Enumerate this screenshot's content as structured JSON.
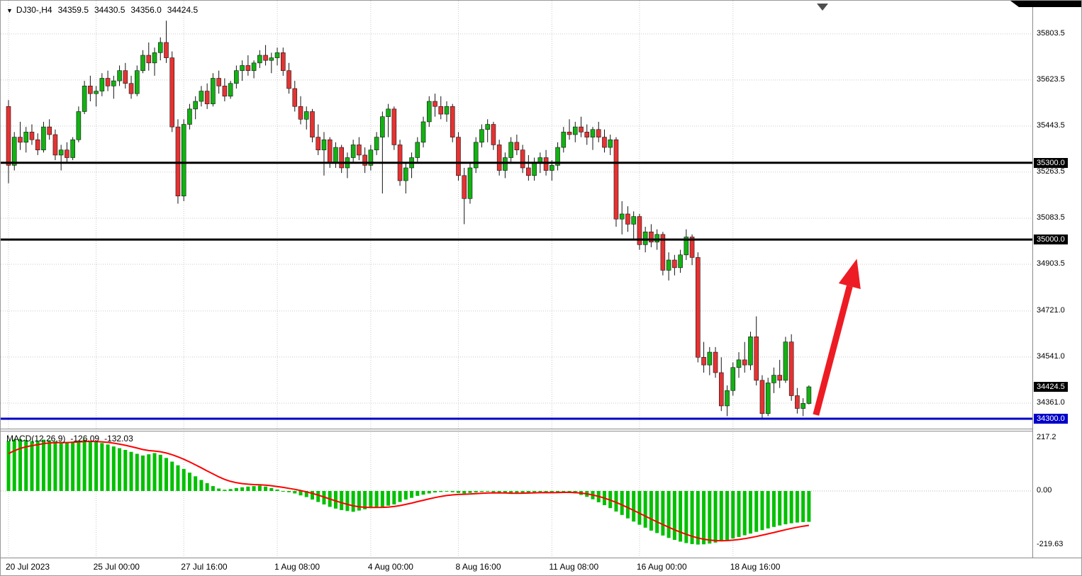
{
  "window": {
    "bg": "#ffffff",
    "border_color": "#9a9a9a"
  },
  "header": {
    "dropdown_icon": "▼",
    "symbol_period": "DJ30-,H4",
    "open": "34359.5",
    "high": "34430.5",
    "low": "34356.0",
    "close": "34424.5"
  },
  "macd_header": {
    "label": "MACD(12,26,9)",
    "value_main": "-126.09",
    "value_signal": "-132.03"
  },
  "y_axis": {
    "ticks": [
      {
        "label": "35803.5",
        "price": 35803.5
      },
      {
        "label": "35623.5",
        "price": 35623.5
      },
      {
        "label": "35443.5",
        "price": 35443.5
      },
      {
        "label": "35263.5",
        "price": 35263.5
      },
      {
        "label": "35083.5",
        "price": 35083.5
      },
      {
        "label": "34903.5",
        "price": 34903.5
      },
      {
        "label": "34721.0",
        "price": 34721.0
      },
      {
        "label": "34541.0",
        "price": 34541.0
      },
      {
        "label": "34361.0",
        "price": 34361.0
      }
    ],
    "special": [
      {
        "label": "35300.0",
        "price": 35300.0,
        "bg": "#000000"
      },
      {
        "label": "35000.0",
        "price": 35000.0,
        "bg": "#000000"
      },
      {
        "label": "34424.5",
        "price": 34424.5,
        "bg": "#000000"
      },
      {
        "label": "34300.0",
        "price": 34300.0,
        "bg": "#0000c8"
      }
    ]
  },
  "macd_axis": {
    "ticks": [
      {
        "label": "217.2",
        "value": 217.2
      },
      {
        "label": "0.00",
        "value": 0
      },
      {
        "label": "-219.63",
        "value": -219.63
      }
    ]
  },
  "x_axis": {
    "ticks": [
      {
        "label": "20 Jul 2023",
        "index": 0
      },
      {
        "label": "25 Jul 00:00",
        "index": 15
      },
      {
        "label": "27 Jul 16:00",
        "index": 30
      },
      {
        "label": "1 Aug 08:00",
        "index": 46
      },
      {
        "label": "4 Aug 00:00",
        "index": 62
      },
      {
        "label": "8 Aug 16:00",
        "index": 77
      },
      {
        "label": "11 Aug 08:00",
        "index": 93
      },
      {
        "label": "16 Aug 00:00",
        "index": 108
      },
      {
        "label": "18 Aug 16:00",
        "index": 124
      }
    ]
  },
  "chart_data": {
    "type": "candlestick",
    "symbol": "DJ30-",
    "timeframe": "H4",
    "title": "DJ30-,H4 34359.5 34430.5 34356.0 34424.5",
    "indicator": "MACD(12,26,9)",
    "indicator_values": [
      -126.09,
      -132.03
    ],
    "y_range": [
      34300,
      35933
    ],
    "macd_range": [
      -219.63,
      217.2
    ],
    "levels": [
      {
        "price": 35300.0,
        "color": "#000000",
        "width": 3,
        "label": "35300.0"
      },
      {
        "price": 35000.0,
        "color": "#000000",
        "width": 3,
        "label": "35000.0"
      },
      {
        "price": 34300.0,
        "color": "#0000c8",
        "width": 3,
        "label": "34300.0"
      }
    ],
    "arrow": {
      "from_index": 138.2,
      "from_price": 34315,
      "to_index": 145.2,
      "to_price": 34925
    },
    "colors": {
      "bull": "#12b212",
      "bear": "#e63232",
      "wick": "#141414",
      "grid": "#c9c9c9",
      "macd_hist": "#00c000",
      "macd_signal": "#ff0000",
      "arrow": "#ed1c24",
      "level_badge": "#000000",
      "blue_badge": "#0000c8"
    },
    "ohlc": [
      [
        35520,
        35545,
        35220,
        35290
      ],
      [
        35290,
        35420,
        35270,
        35400
      ],
      [
        35400,
        35460,
        35350,
        35380
      ],
      [
        35380,
        35440,
        35340,
        35420
      ],
      [
        35420,
        35450,
        35370,
        35390
      ],
      [
        35390,
        35415,
        35330,
        35350
      ],
      [
        35350,
        35460,
        35340,
        35440
      ],
      [
        35440,
        35470,
        35390,
        35410
      ],
      [
        35410,
        35430,
        35310,
        35330
      ],
      [
        35330,
        35370,
        35270,
        35350
      ],
      [
        35350,
        35380,
        35300,
        35320
      ],
      [
        35320,
        35400,
        35310,
        35390
      ],
      [
        35390,
        35520,
        35380,
        35500
      ],
      [
        35500,
        35620,
        35490,
        35600
      ],
      [
        35600,
        35640,
        35540,
        35570
      ],
      [
        35570,
        35600,
        35520,
        35580
      ],
      [
        35580,
        35650,
        35560,
        35630
      ],
      [
        35630,
        35660,
        35580,
        35600
      ],
      [
        35600,
        35640,
        35550,
        35620
      ],
      [
        35620,
        35680,
        35600,
        35660
      ],
      [
        35660,
        35690,
        35590,
        35610
      ],
      [
        35610,
        35640,
        35550,
        35570
      ],
      [
        35570,
        35680,
        35560,
        35660
      ],
      [
        35660,
        35740,
        35650,
        35720
      ],
      [
        35720,
        35770,
        35660,
        35690
      ],
      [
        35690,
        35750,
        35640,
        35730
      ],
      [
        35730,
        35790,
        35700,
        35770
      ],
      [
        35770,
        35855,
        35690,
        35710
      ],
      [
        35710,
        35735,
        35420,
        35440
      ],
      [
        35440,
        35470,
        35140,
        35170
      ],
      [
        35170,
        35470,
        35150,
        35450
      ],
      [
        35450,
        35530,
        35430,
        35510
      ],
      [
        35510,
        35560,
        35470,
        35540
      ],
      [
        35540,
        35600,
        35520,
        35580
      ],
      [
        35580,
        35610,
        35510,
        35530
      ],
      [
        35530,
        35650,
        35520,
        35630
      ],
      [
        35630,
        35660,
        35570,
        35600
      ],
      [
        35600,
        35630,
        35540,
        35560
      ],
      [
        35560,
        35620,
        35550,
        35610
      ],
      [
        35610,
        35680,
        35590,
        35660
      ],
      [
        35660,
        35700,
        35620,
        35680
      ],
      [
        35680,
        35720,
        35640,
        35660
      ],
      [
        35660,
        35700,
        35630,
        35690
      ],
      [
        35690,
        35740,
        35670,
        35720
      ],
      [
        35720,
        35760,
        35680,
        35700
      ],
      [
        35700,
        35730,
        35650,
        35710
      ],
      [
        35710,
        35750,
        35680,
        35730
      ],
      [
        35730,
        35750,
        35640,
        35660
      ],
      [
        35660,
        35690,
        35570,
        35590
      ],
      [
        35590,
        35620,
        35500,
        35520
      ],
      [
        35520,
        35560,
        35450,
        35470
      ],
      [
        35470,
        35520,
        35430,
        35500
      ],
      [
        35500,
        35510,
        35380,
        35400
      ],
      [
        35400,
        35450,
        35330,
        35350
      ],
      [
        35350,
        35420,
        35250,
        35390
      ],
      [
        35390,
        35400,
        35280,
        35300
      ],
      [
        35300,
        35380,
        35280,
        35360
      ],
      [
        35360,
        35370,
        35260,
        35280
      ],
      [
        35280,
        35340,
        35240,
        35320
      ],
      [
        35320,
        35390,
        35300,
        35370
      ],
      [
        35370,
        35400,
        35310,
        35330
      ],
      [
        35330,
        35360,
        35260,
        35290
      ],
      [
        35290,
        35370,
        35270,
        35350
      ],
      [
        35350,
        35420,
        35330,
        35400
      ],
      [
        35400,
        35500,
        35180,
        35480
      ],
      [
        35480,
        35530,
        35400,
        35510
      ],
      [
        35510,
        35520,
        35350,
        35370
      ],
      [
        35370,
        35390,
        35210,
        35230
      ],
      [
        35230,
        35300,
        35180,
        35280
      ],
      [
        35280,
        35340,
        35240,
        35320
      ],
      [
        35320,
        35400,
        35300,
        35380
      ],
      [
        35380,
        35480,
        35360,
        35460
      ],
      [
        35460,
        35560,
        35440,
        35540
      ],
      [
        35540,
        35570,
        35480,
        35520
      ],
      [
        35520,
        35560,
        35470,
        35490
      ],
      [
        35490,
        35540,
        35460,
        35520
      ],
      [
        35520,
        35530,
        35380,
        35400
      ],
      [
        35400,
        35420,
        35230,
        35250
      ],
      [
        35250,
        35280,
        35060,
        35160
      ],
      [
        35160,
        35300,
        35140,
        35280
      ],
      [
        35280,
        35400,
        35260,
        35380
      ],
      [
        35380,
        35450,
        35360,
        35430
      ],
      [
        35430,
        35470,
        35380,
        35450
      ],
      [
        35450,
        35460,
        35350,
        35370
      ],
      [
        35370,
        35390,
        35250,
        35270
      ],
      [
        35270,
        35340,
        35240,
        35320
      ],
      [
        35320,
        35400,
        35300,
        35380
      ],
      [
        35380,
        35410,
        35330,
        35350
      ],
      [
        35350,
        35370,
        35260,
        35280
      ],
      [
        35280,
        35330,
        35230,
        35250
      ],
      [
        35250,
        35320,
        35230,
        35300
      ],
      [
        35300,
        35340,
        35260,
        35320
      ],
      [
        35320,
        35350,
        35250,
        35270
      ],
      [
        35270,
        35310,
        35230,
        35290
      ],
      [
        35290,
        35380,
        35270,
        35360
      ],
      [
        35360,
        35440,
        35340,
        35420
      ],
      [
        35420,
        35470,
        35390,
        35410
      ],
      [
        35410,
        35460,
        35380,
        35440
      ],
      [
        35440,
        35480,
        35400,
        35420
      ],
      [
        35420,
        35450,
        35370,
        35400
      ],
      [
        35400,
        35440,
        35350,
        35430
      ],
      [
        35430,
        35460,
        35380,
        35400
      ],
      [
        35400,
        35430,
        35340,
        35360
      ],
      [
        35360,
        35410,
        35330,
        35390
      ],
      [
        35390,
        35400,
        35050,
        35080
      ],
      [
        35080,
        35150,
        35020,
        35100
      ],
      [
        35100,
        35130,
        35030,
        35060
      ],
      [
        35060,
        35110,
        35000,
        35090
      ],
      [
        35090,
        35100,
        34960,
        34980
      ],
      [
        34980,
        35050,
        34950,
        35030
      ],
      [
        35030,
        35060,
        34970,
        34990
      ],
      [
        34990,
        35040,
        34960,
        35020
      ],
      [
        35020,
        35030,
        34860,
        34880
      ],
      [
        34880,
        34950,
        34840,
        34920
      ],
      [
        34920,
        34940,
        34860,
        34890
      ],
      [
        34890,
        34960,
        34870,
        34940
      ],
      [
        34940,
        35040,
        34920,
        35010
      ],
      [
        35010,
        35020,
        34900,
        34930
      ],
      [
        34930,
        34950,
        34520,
        34540
      ],
      [
        34540,
        34600,
        34480,
        34510
      ],
      [
        34510,
        34580,
        34470,
        34560
      ],
      [
        34560,
        34580,
        34460,
        34480
      ],
      [
        34480,
        34540,
        34330,
        34350
      ],
      [
        34350,
        34430,
        34310,
        34410
      ],
      [
        34410,
        34520,
        34390,
        34500
      ],
      [
        34500,
        34560,
        34460,
        34530
      ],
      [
        34530,
        34600,
        34480,
        34510
      ],
      [
        34510,
        34640,
        34490,
        34620
      ],
      [
        34620,
        34700,
        34430,
        34450
      ],
      [
        34450,
        34470,
        34300,
        34320
      ],
      [
        34320,
        34460,
        34310,
        34440
      ],
      [
        34440,
        34500,
        34400,
        34470
      ],
      [
        34470,
        34530,
        34420,
        34450
      ],
      [
        34450,
        34620,
        34440,
        34600
      ],
      [
        34600,
        34630,
        34370,
        34390
      ],
      [
        34390,
        34420,
        34320,
        34340
      ],
      [
        34340,
        34380,
        34310,
        34360
      ],
      [
        34359.5,
        34430.5,
        34356,
        34424.5
      ]
    ],
    "macd": [
      205,
      210,
      212,
      208,
      204,
      206,
      210,
      207,
      203,
      200,
      198,
      202,
      206,
      210,
      205,
      200,
      196,
      190,
      182,
      175,
      168,
      160,
      152,
      145,
      150,
      155,
      148,
      135,
      120,
      105,
      90,
      75,
      60,
      45,
      32,
      20,
      10,
      5,
      8,
      12,
      15,
      18,
      20,
      22,
      18,
      12,
      6,
      0,
      -5,
      -10,
      -18,
      -25,
      -35,
      -45,
      -55,
      -65,
      -72,
      -78,
      -82,
      -85,
      -80,
      -75,
      -70,
      -68,
      -65,
      -60,
      -55,
      -45,
      -35,
      -28,
      -20,
      -15,
      -10,
      -6,
      -4,
      -3,
      -5,
      -8,
      -10,
      -8,
      -6,
      -4,
      -3,
      -5,
      -8,
      -10,
      -12,
      -10,
      -8,
      -6,
      -5,
      -4,
      -6,
      -8,
      -5,
      -3,
      -6,
      -10,
      -16,
      -24,
      -34,
      -46,
      -58,
      -70,
      -84,
      -98,
      -112,
      -125,
      -138,
      -150,
      -162,
      -172,
      -182,
      -192,
      -200,
      -207,
      -213,
      -217,
      -219,
      -218,
      -215,
      -211,
      -206,
      -200,
      -194,
      -188,
      -181,
      -174,
      -167,
      -160,
      -153,
      -147,
      -141,
      -136,
      -132,
      -129,
      -127,
      -126.09
    ]
  }
}
